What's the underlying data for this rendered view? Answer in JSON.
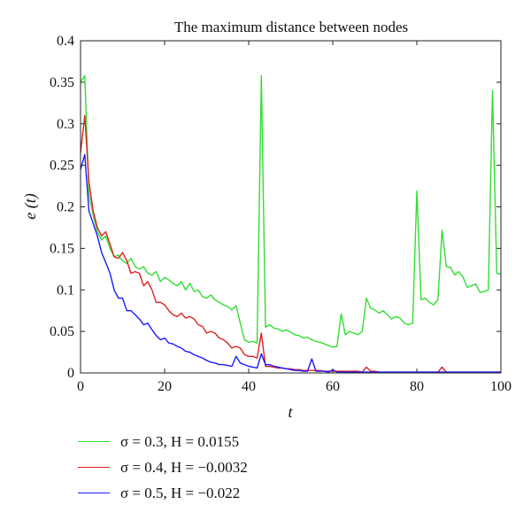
{
  "chart_data": {
    "type": "line",
    "title": "The maximum distance between nodes",
    "xlabel": "t",
    "ylabel": "e (t)",
    "xlim": [
      0,
      100
    ],
    "ylim": [
      0,
      0.4
    ],
    "xticks": [
      "0",
      "20",
      "40",
      "60",
      "80",
      "100"
    ],
    "yticks": [
      "0",
      "0.05",
      "0.1",
      "0.15",
      "0.2",
      "0.25",
      "0.3",
      "0.35",
      "0.4"
    ],
    "grid": false,
    "legend_position": "bottom-left (outside plot)",
    "x": [
      0,
      1,
      2,
      3,
      4,
      5,
      6,
      7,
      8,
      9,
      10,
      11,
      12,
      13,
      14,
      15,
      16,
      17,
      18,
      19,
      20,
      21,
      22,
      23,
      24,
      25,
      26,
      27,
      28,
      29,
      30,
      31,
      32,
      33,
      34,
      35,
      36,
      37,
      38,
      39,
      40,
      41,
      42,
      43,
      44,
      45,
      46,
      47,
      48,
      49,
      50,
      51,
      52,
      53,
      54,
      55,
      56,
      57,
      58,
      59,
      60,
      61,
      62,
      63,
      64,
      65,
      66,
      67,
      68,
      69,
      70,
      71,
      72,
      73,
      74,
      75,
      76,
      77,
      78,
      79,
      80,
      81,
      82,
      83,
      84,
      85,
      86,
      87,
      88,
      89,
      90,
      91,
      92,
      93,
      94,
      95,
      96,
      97,
      98,
      99,
      100
    ],
    "series": [
      {
        "name": "σ = 0.3, H = 0.0155",
        "color": "#33dd33",
        "values": [
          0.35,
          0.358,
          0.215,
          0.19,
          0.17,
          0.16,
          0.165,
          0.15,
          0.14,
          0.142,
          0.135,
          0.132,
          0.138,
          0.128,
          0.125,
          0.128,
          0.12,
          0.118,
          0.122,
          0.11,
          0.115,
          0.112,
          0.108,
          0.105,
          0.11,
          0.1,
          0.108,
          0.098,
          0.1,
          0.092,
          0.09,
          0.094,
          0.088,
          0.085,
          0.082,
          0.08,
          0.076,
          0.081,
          0.06,
          0.04,
          0.037,
          0.038,
          0.036,
          0.358,
          0.055,
          0.058,
          0.054,
          0.053,
          0.05,
          0.052,
          0.049,
          0.046,
          0.045,
          0.042,
          0.043,
          0.04,
          0.038,
          0.037,
          0.035,
          0.033,
          0.031,
          0.032,
          0.071,
          0.046,
          0.05,
          0.048,
          0.046,
          0.05,
          0.09,
          0.078,
          0.076,
          0.072,
          0.075,
          0.07,
          0.065,
          0.068,
          0.066,
          0.06,
          0.058,
          0.06,
          0.219,
          0.088,
          0.09,
          0.085,
          0.082,
          0.088,
          0.172,
          0.128,
          0.127,
          0.118,
          0.122,
          0.115,
          0.103,
          0.105,
          0.107,
          0.097,
          0.098,
          0.1,
          0.34,
          0.12,
          0.119
        ]
      },
      {
        "name": "σ = 0.4, H = −0.0032",
        "color": "#e02020",
        "values": [
          0.265,
          0.31,
          0.23,
          0.195,
          0.175,
          0.165,
          0.17,
          0.155,
          0.14,
          0.138,
          0.145,
          0.135,
          0.12,
          0.122,
          0.12,
          0.105,
          0.11,
          0.1,
          0.085,
          0.085,
          0.082,
          0.075,
          0.07,
          0.068,
          0.072,
          0.066,
          0.068,
          0.065,
          0.058,
          0.056,
          0.048,
          0.05,
          0.048,
          0.042,
          0.04,
          0.036,
          0.03,
          0.032,
          0.03,
          0.022,
          0.02,
          0.02,
          0.018,
          0.048,
          0.008,
          0.008,
          0.007,
          0.006,
          0.006,
          0.005,
          0.005,
          0.004,
          0.004,
          0.003,
          0.003,
          0.003,
          0.003,
          0.003,
          0.002,
          0.002,
          0.002,
          0.002,
          0.002,
          0.002,
          0.002,
          0.002,
          0.002,
          0.001,
          0.007,
          0.002,
          0.002,
          0.001,
          0.001,
          0.001,
          0.001,
          0.001,
          0.001,
          0.001,
          0.001,
          0.001,
          0.001,
          0.001,
          0.001,
          0.001,
          0.001,
          0.001,
          0.007,
          0.001,
          0.001,
          0.001,
          0.001,
          0.001,
          0.001,
          0.001,
          0.001,
          0.001,
          0.001,
          0.001,
          0.001,
          0.001,
          0.001
        ]
      },
      {
        "name": "σ = 0.5, H = −0.022",
        "color": "#1a1aff",
        "values": [
          0.245,
          0.263,
          0.195,
          0.18,
          0.165,
          0.145,
          0.133,
          0.12,
          0.1,
          0.09,
          0.09,
          0.075,
          0.075,
          0.07,
          0.065,
          0.058,
          0.06,
          0.052,
          0.045,
          0.04,
          0.042,
          0.036,
          0.035,
          0.032,
          0.03,
          0.026,
          0.025,
          0.022,
          0.02,
          0.018,
          0.015,
          0.013,
          0.012,
          0.01,
          0.01,
          0.009,
          0.008,
          0.02,
          0.012,
          0.01,
          0.008,
          0.007,
          0.006,
          0.023,
          0.01,
          0.01,
          0.008,
          0.007,
          0.006,
          0.005,
          0.004,
          0.003,
          0.003,
          0.002,
          0.002,
          0.017,
          0.002,
          0.002,
          0.002,
          0.001,
          0.004,
          0.001,
          0.001,
          0.001,
          0.001,
          0.001,
          0.001,
          0.001,
          0.001,
          0.001,
          0.001,
          0.001,
          0.001,
          0.001,
          0.001,
          0.001,
          0.001,
          0.001,
          0.001,
          0.001,
          0.001,
          0.001,
          0.001,
          0.001,
          0.001,
          0.001,
          0.001,
          0.001,
          0.001,
          0.001,
          0.001,
          0.001,
          0.001,
          0.001,
          0.001,
          0.001,
          0.001,
          0.001,
          0.001,
          0.001,
          0.001
        ]
      }
    ]
  }
}
